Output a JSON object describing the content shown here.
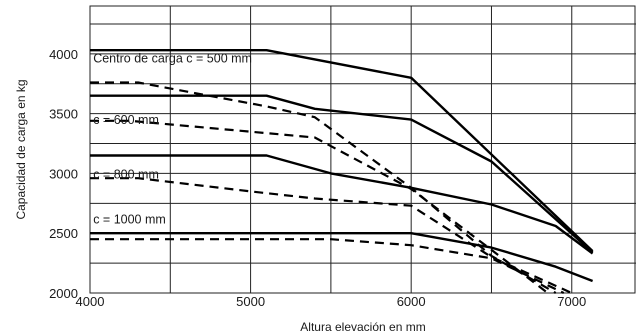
{
  "chart_data": {
    "type": "line",
    "title": "",
    "xlabel": "Altura elevación en mm",
    "ylabel": "Capacidad de carga en kg",
    "xlim": [
      4000,
      7400
    ],
    "ylim": [
      2000,
      4400
    ],
    "x_ticks": [
      4000,
      5000,
      6000,
      7000
    ],
    "x_tick_labels": [
      "4000",
      "5000",
      "6000",
      "7000"
    ],
    "y_ticks": [
      2000,
      2500,
      3000,
      3500,
      4000
    ],
    "y_tick_labels": [
      "2000",
      "2500",
      "3000",
      "3500",
      "4000"
    ],
    "grid": true,
    "series_labels": [
      {
        "text": "Centro de carga  c = 500 mm",
        "x": 4020,
        "y": 3960
      },
      {
        "text": "c = 600 mm",
        "x": 4020,
        "y": 3445
      },
      {
        "text": "c = 800 mm",
        "x": 4020,
        "y": 2990
      },
      {
        "text": "c = 1000 mm",
        "x": 4020,
        "y": 2615
      }
    ],
    "series": [
      {
        "style": "solid",
        "points": [
          [
            4000,
            4030
          ],
          [
            5100,
            4030
          ],
          [
            6000,
            3800
          ],
          [
            7130,
            2350
          ]
        ]
      },
      {
        "style": "dashed",
        "points": [
          [
            4000,
            3760
          ],
          [
            4300,
            3760
          ],
          [
            5100,
            3560
          ],
          [
            5400,
            3470
          ],
          [
            6000,
            2880
          ],
          [
            6500,
            2310
          ],
          [
            6900,
            2000
          ]
        ]
      },
      {
        "style": "solid",
        "points": [
          [
            4000,
            3650
          ],
          [
            5100,
            3650
          ],
          [
            5400,
            3540
          ],
          [
            6000,
            3450
          ],
          [
            6500,
            3100
          ],
          [
            7130,
            2340
          ]
        ]
      },
      {
        "style": "dashed",
        "points": [
          [
            4000,
            3440
          ],
          [
            4250,
            3440
          ],
          [
            5400,
            3300
          ],
          [
            6000,
            2870
          ],
          [
            6500,
            2360
          ],
          [
            6850,
            2000
          ]
        ]
      },
      {
        "style": "solid",
        "points": [
          [
            4000,
            3150
          ],
          [
            5100,
            3150
          ],
          [
            5500,
            3000
          ],
          [
            6000,
            2880
          ],
          [
            6500,
            2740
          ],
          [
            6900,
            2560
          ],
          [
            7130,
            2330
          ]
        ]
      },
      {
        "style": "dashed",
        "points": [
          [
            4000,
            2960
          ],
          [
            4300,
            2960
          ],
          [
            5000,
            2850
          ],
          [
            5400,
            2790
          ],
          [
            6000,
            2730
          ],
          [
            6500,
            2300
          ],
          [
            7000,
            2000
          ]
        ]
      },
      {
        "style": "solid",
        "points": [
          [
            4000,
            2500
          ],
          [
            6000,
            2500
          ],
          [
            6500,
            2380
          ],
          [
            6900,
            2220
          ],
          [
            7130,
            2100
          ]
        ]
      },
      {
        "style": "dashed",
        "points": [
          [
            4000,
            2450
          ],
          [
            5500,
            2450
          ],
          [
            6000,
            2400
          ],
          [
            6500,
            2290
          ],
          [
            6950,
            2000
          ]
        ]
      }
    ]
  }
}
